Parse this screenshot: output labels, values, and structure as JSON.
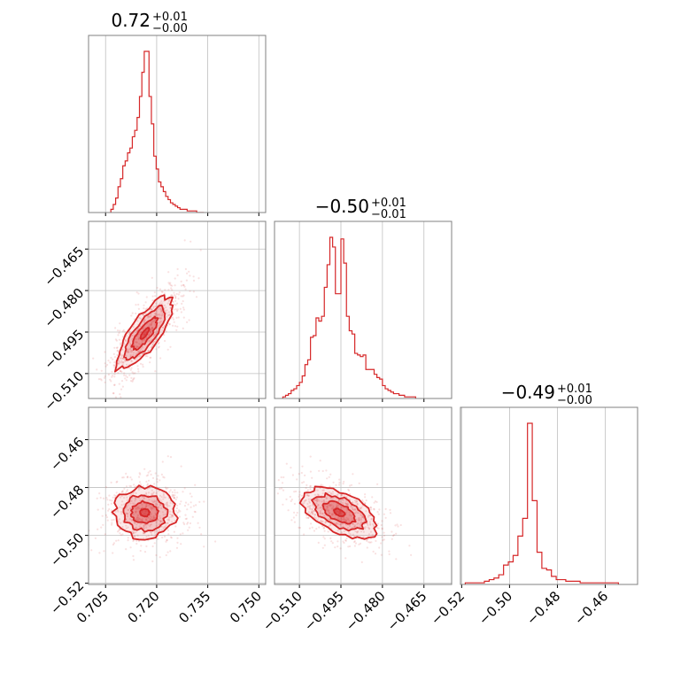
{
  "colors": {
    "accent": "#d62728",
    "frame": "#808080",
    "grid": "#bfbfbf"
  },
  "chart_data": {
    "type": "corner",
    "parameters": [
      {
        "title_main": "0.72",
        "title_plus": "+0.01",
        "title_minus": "−0.00",
        "range": [
          0.7,
          0.752
        ],
        "ticks": [
          0.705,
          0.72,
          0.735,
          0.75
        ],
        "tick_labels": [
          "0.705",
          "0.720",
          "0.735",
          "0.750"
        ]
      },
      {
        "title_main": "−0.50",
        "title_plus": "+0.01",
        "title_minus": "−0.01",
        "range": [
          -0.519,
          -0.455
        ],
        "ticks": [
          -0.51,
          -0.495,
          -0.48,
          -0.465
        ],
        "tick_labels": [
          "−0.510",
          "−0.495",
          "−0.480",
          "−0.465"
        ]
      },
      {
        "title_main": "−0.49",
        "title_plus": "+0.01",
        "title_minus": "−0.00",
        "range": [
          -0.5205,
          -0.4465
        ],
        "ticks": [
          -0.52,
          -0.5,
          -0.48,
          -0.46
        ],
        "tick_labels": [
          "−0.52",
          "−0.50",
          "−0.48",
          "−0.46"
        ]
      }
    ],
    "marginals": [
      {
        "bins": [
          0.7069,
          0.7076,
          0.7083,
          0.709,
          0.7097,
          0.7104,
          0.7111,
          0.7118,
          0.7125,
          0.7132,
          0.7139,
          0.7146,
          0.7153,
          0.716,
          0.7167,
          0.7174,
          0.7181,
          0.7188,
          0.7195,
          0.7202,
          0.7209,
          0.7216,
          0.7223,
          0.723,
          0.7237,
          0.7244,
          0.7251,
          0.7258,
          0.7265,
          0.7272,
          0.7279,
          0.7286,
          0.7293,
          0.73,
          0.7307,
          0.7314,
          0.7321,
          0.7328,
          0.7335
        ],
        "counts": [
          2,
          5,
          9,
          16,
          21,
          29,
          32,
          37,
          40,
          47,
          51,
          59,
          72,
          87,
          100,
          100,
          72,
          55,
          35,
          27,
          19,
          16,
          13,
          10,
          8,
          6,
          5,
          4,
          3,
          2,
          2,
          2,
          1,
          1,
          1,
          1,
          0,
          0,
          0
        ]
      },
      {
        "bins": [
          -0.5155,
          -0.5145,
          -0.5135,
          -0.5125,
          -0.5115,
          -0.5105,
          -0.5095,
          -0.5085,
          -0.5075,
          -0.5065,
          -0.5055,
          -0.5045,
          -0.5035,
          -0.5025,
          -0.5015,
          -0.5005,
          -0.4995,
          -0.4985,
          -0.4975,
          -0.4965,
          -0.4955,
          -0.4945,
          -0.4935,
          -0.4925,
          -0.4915,
          -0.4905,
          -0.4895,
          -0.4885,
          -0.4875,
          -0.4865,
          -0.4855,
          -0.4845,
          -0.4835,
          -0.4825,
          -0.4815,
          -0.4805,
          -0.4795,
          -0.4785,
          -0.4775,
          -0.4765,
          -0.4755,
          -0.4745,
          -0.4735,
          -0.4725,
          -0.4715,
          -0.4705,
          -0.4695,
          -0.4685
        ],
        "counts": [
          1,
          2,
          3,
          5,
          6,
          8,
          10,
          14,
          21,
          24,
          38,
          39,
          50,
          48,
          51,
          69,
          83,
          100,
          94,
          65,
          65,
          99,
          84,
          51,
          42,
          40,
          28,
          27,
          26,
          27,
          18,
          18,
          18,
          15,
          13,
          12,
          8,
          6,
          5,
          4,
          3,
          3,
          2,
          2,
          1,
          1,
          1,
          1
        ]
      },
      {
        "bins": [
          -0.5175,
          -0.5155,
          -0.5135,
          -0.5115,
          -0.5095,
          -0.5075,
          -0.5055,
          -0.5035,
          -0.5015,
          -0.4995,
          -0.4975,
          -0.4955,
          -0.4935,
          -0.4915,
          -0.4895,
          -0.4875,
          -0.4855,
          -0.4835,
          -0.4815,
          -0.4795,
          -0.4775,
          -0.4755,
          -0.4735,
          -0.4715,
          -0.4695,
          -0.4675,
          -0.4655,
          -0.4635,
          -0.4615,
          -0.4595,
          -0.4575,
          -0.4555
        ],
        "counts": [
          1,
          1,
          1,
          1,
          2,
          3,
          4,
          6,
          12,
          14,
          18,
          30,
          41,
          100,
          52,
          20,
          10,
          9,
          5,
          3,
          3,
          2,
          2,
          2,
          1,
          1,
          1,
          1,
          1,
          1,
          1,
          1
        ]
      }
    ],
    "scatter_panels": [
      {
        "row": 1,
        "col": 0,
        "points": 700,
        "seed": 11,
        "center": [
          0.7165,
          -0.4955
        ],
        "sd": [
          0.0042,
          0.0066
        ],
        "corr": 0.78
      },
      {
        "row": 2,
        "col": 0,
        "points": 650,
        "seed": 23,
        "center": [
          0.7165,
          -0.4905
        ],
        "sd": [
          0.0045,
          0.0053
        ],
        "corr": -0.02
      },
      {
        "row": 2,
        "col": 1,
        "points": 650,
        "seed": 37,
        "center": [
          -0.4955,
          -0.4905
        ],
        "sd": [
          0.0066,
          0.0053
        ],
        "corr": -0.5
      }
    ]
  }
}
